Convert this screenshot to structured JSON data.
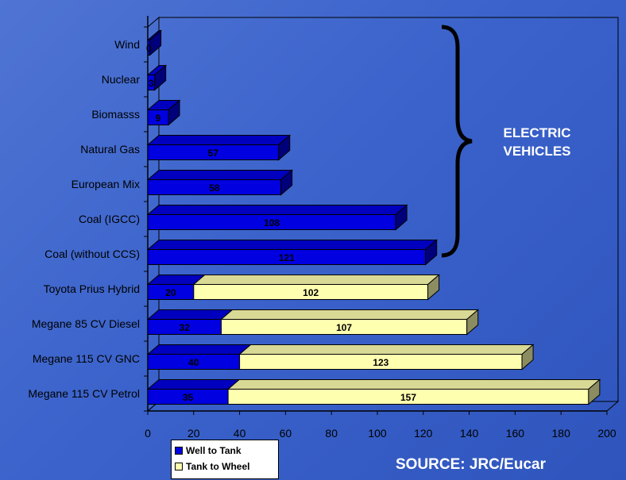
{
  "chart_data": {
    "type": "bar",
    "orientation": "horizontal",
    "stacked": true,
    "categories": [
      "Wind",
      "Nuclear",
      "Biomasss",
      "Natural Gas",
      "European Mix",
      "Coal  (IGCC)",
      "Coal (without CCS)",
      "Toyota Prius Hybrid",
      "Megane 85 CV Diesel",
      "Megane 115 CV GNC",
      "Megane 115 CV Petrol"
    ],
    "series": [
      {
        "name": "Well to Tank",
        "color": "#0000e0",
        "values": [
          0,
          3,
          9,
          57,
          58,
          108,
          121,
          20,
          32,
          40,
          35
        ]
      },
      {
        "name": "Tank to Wheel",
        "color": "#ffffb0",
        "values": [
          0,
          0,
          0,
          0,
          0,
          0,
          0,
          102,
          107,
          123,
          157
        ]
      }
    ],
    "xlim": [
      0,
      200
    ],
    "xticks": [
      "0",
      "20",
      "40",
      "60",
      "80",
      "100",
      "120",
      "140",
      "160",
      "180",
      "200"
    ],
    "legend_position": "bottom-left",
    "annotation": {
      "line1": "ELECTRIC",
      "line2": "VEHICLES"
    },
    "source_text": "SOURCE: JRC/Eucar"
  }
}
